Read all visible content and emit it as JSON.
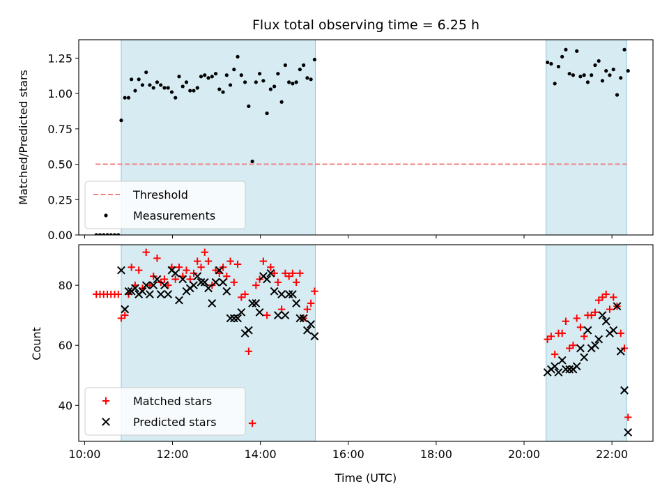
{
  "chart_data": [
    {
      "type": "scatter",
      "title": "Flux total observing time = 6.25 h",
      "xlabel": "",
      "ylabel": "Matched/Predicted stars",
      "xlim": [
        "09:52",
        "22:56"
      ],
      "ylim": [
        0,
        1.38
      ],
      "yticks": [
        0.0,
        0.25,
        0.5,
        0.75,
        1.0,
        1.25
      ],
      "ytick_labels": [
        "0.00",
        "0.25",
        "0.50",
        "0.75",
        "1.00",
        "1.25"
      ],
      "observing_windows": [
        [
          "10:50",
          "15:15"
        ],
        [
          "20:30",
          "22:20"
        ]
      ],
      "threshold": {
        "name": "Threshold",
        "value": 0.5,
        "x_range": [
          "10:15",
          "22:20"
        ],
        "color": "#f08080",
        "style": "dashed"
      },
      "series": [
        {
          "name": "Measurements",
          "marker": "dot",
          "color": "#000000",
          "points": [
            [
              "10:16",
              0.0
            ],
            [
              "10:21",
              0.0
            ],
            [
              "10:26",
              0.0
            ],
            [
              "10:31",
              0.0
            ],
            [
              "10:36",
              0.0
            ],
            [
              "10:41",
              0.0
            ],
            [
              "10:46",
              0.0
            ],
            [
              "10:50",
              0.81
            ],
            [
              "10:55",
              0.97
            ],
            [
              "11:00",
              0.97
            ],
            [
              "11:04",
              1.1
            ],
            [
              "11:09",
              1.02
            ],
            [
              "11:14",
              1.1
            ],
            [
              "11:19",
              1.06
            ],
            [
              "11:24",
              1.15
            ],
            [
              "11:29",
              1.06
            ],
            [
              "11:34",
              1.04
            ],
            [
              "11:39",
              1.08
            ],
            [
              "11:44",
              1.06
            ],
            [
              "11:49",
              1.04
            ],
            [
              "11:54",
              1.04
            ],
            [
              "11:59",
              1.01
            ],
            [
              "12:04",
              0.97
            ],
            [
              "12:09",
              1.12
            ],
            [
              "12:14",
              1.05
            ],
            [
              "12:19",
              1.08
            ],
            [
              "12:24",
              1.02
            ],
            [
              "12:29",
              1.02
            ],
            [
              "12:34",
              1.04
            ],
            [
              "12:39",
              1.12
            ],
            [
              "12:44",
              1.13
            ],
            [
              "12:49",
              1.11
            ],
            [
              "12:54",
              1.12
            ],
            [
              "12:59",
              1.14
            ],
            [
              "13:04",
              1.03
            ],
            [
              "13:09",
              1.01
            ],
            [
              "13:14",
              1.13
            ],
            [
              "13:19",
              1.06
            ],
            [
              "13:24",
              1.17
            ],
            [
              "13:29",
              1.26
            ],
            [
              "13:34",
              1.13
            ],
            [
              "13:39",
              1.08
            ],
            [
              "13:44",
              0.91
            ],
            [
              "13:49",
              0.52
            ],
            [
              "13:54",
              1.08
            ],
            [
              "13:59",
              1.14
            ],
            [
              "14:04",
              1.09
            ],
            [
              "14:09",
              0.86
            ],
            [
              "14:14",
              1.03
            ],
            [
              "14:19",
              1.05
            ],
            [
              "14:24",
              1.14
            ],
            [
              "14:29",
              0.94
            ],
            [
              "14:34",
              1.2
            ],
            [
              "14:39",
              1.08
            ],
            [
              "14:44",
              1.07
            ],
            [
              "14:49",
              1.08
            ],
            [
              "14:54",
              1.17
            ],
            [
              "14:59",
              1.2
            ],
            [
              "15:04",
              1.11
            ],
            [
              "15:09",
              1.1
            ],
            [
              "15:14",
              1.24
            ],
            [
              "20:32",
              1.22
            ],
            [
              "20:37",
              1.21
            ],
            [
              "20:42",
              1.07
            ],
            [
              "20:47",
              1.19
            ],
            [
              "20:52",
              1.26
            ],
            [
              "20:57",
              1.31
            ],
            [
              "21:02",
              1.14
            ],
            [
              "21:07",
              1.13
            ],
            [
              "21:12",
              1.3
            ],
            [
              "21:17",
              1.12
            ],
            [
              "21:22",
              1.13
            ],
            [
              "21:27",
              1.08
            ],
            [
              "21:32",
              1.13
            ],
            [
              "21:37",
              1.2
            ],
            [
              "21:42",
              1.23
            ],
            [
              "21:47",
              1.09
            ],
            [
              "21:52",
              1.16
            ],
            [
              "21:57",
              1.13
            ],
            [
              "22:02",
              1.17
            ],
            [
              "22:07",
              0.99
            ],
            [
              "22:12",
              1.11
            ],
            [
              "22:17",
              1.31
            ],
            [
              "22:22",
              1.16
            ]
          ]
        }
      ],
      "legend": {
        "placement": "lower-left"
      }
    },
    {
      "type": "scatter",
      "title": "",
      "xlabel": "Time (UTC)",
      "ylabel": "Count",
      "xlim": [
        "09:52",
        "22:56"
      ],
      "ylim": [
        28,
        93.5
      ],
      "yticks": [
        40,
        60,
        80
      ],
      "ytick_labels": [
        "40",
        "60",
        "80"
      ],
      "xticks": [
        "10:00",
        "12:00",
        "14:00",
        "16:00",
        "18:00",
        "20:00",
        "22:00"
      ],
      "observing_windows": [
        [
          "10:50",
          "15:15"
        ],
        [
          "20:30",
          "22:20"
        ]
      ],
      "series": [
        {
          "name": "Matched stars",
          "marker": "plus",
          "color": "#ff0000",
          "points": [
            [
              "10:16",
              77
            ],
            [
              "10:21",
              77
            ],
            [
              "10:26",
              77
            ],
            [
              "10:31",
              77
            ],
            [
              "10:36",
              77
            ],
            [
              "10:41",
              77
            ],
            [
              "10:46",
              77
            ],
            [
              "10:50",
              69
            ],
            [
              "10:55",
              70
            ],
            [
              "11:00",
              77
            ],
            [
              "11:04",
              86
            ],
            [
              "11:09",
              80
            ],
            [
              "11:14",
              85
            ],
            [
              "11:19",
              79
            ],
            [
              "11:24",
              91
            ],
            [
              "11:29",
              80
            ],
            [
              "11:34",
              83
            ],
            [
              "11:39",
              89
            ],
            [
              "11:44",
              81
            ],
            [
              "11:49",
              82
            ],
            [
              "11:54",
              80
            ],
            [
              "11:59",
              86
            ],
            [
              "12:04",
              82
            ],
            [
              "12:09",
              86
            ],
            [
              "12:14",
              83
            ],
            [
              "12:19",
              85
            ],
            [
              "12:24",
              82
            ],
            [
              "12:29",
              84
            ],
            [
              "12:34",
              88
            ],
            [
              "12:39",
              86
            ],
            [
              "12:44",
              91
            ],
            [
              "12:49",
              88
            ],
            [
              "12:54",
              80
            ],
            [
              "12:59",
              85
            ],
            [
              "13:04",
              84
            ],
            [
              "13:09",
              86
            ],
            [
              "13:14",
              83
            ],
            [
              "13:19",
              88
            ],
            [
              "13:24",
              81
            ],
            [
              "13:29",
              87
            ],
            [
              "13:34",
              76
            ],
            [
              "13:39",
              77
            ],
            [
              "13:44",
              58
            ],
            [
              "13:49",
              34
            ],
            [
              "13:54",
              80
            ],
            [
              "13:59",
              82
            ],
            [
              "14:04",
              88
            ],
            [
              "14:09",
              70
            ],
            [
              "14:14",
              86
            ],
            [
              "14:19",
              84
            ],
            [
              "14:24",
              81
            ],
            [
              "14:29",
              72
            ],
            [
              "14:34",
              84
            ],
            [
              "14:39",
              83
            ],
            [
              "14:44",
              84
            ],
            [
              "14:49",
              81
            ],
            [
              "14:54",
              84
            ],
            [
              "14:59",
              69
            ],
            [
              "15:04",
              72
            ],
            [
              "15:09",
              74
            ],
            [
              "15:14",
              78
            ],
            [
              "20:32",
              62
            ],
            [
              "20:37",
              63
            ],
            [
              "20:42",
              57
            ],
            [
              "20:47",
              64
            ],
            [
              "20:52",
              64
            ],
            [
              "20:57",
              68
            ],
            [
              "21:02",
              59
            ],
            [
              "21:07",
              60
            ],
            [
              "21:12",
              69
            ],
            [
              "21:17",
              66
            ],
            [
              "21:22",
              63
            ],
            [
              "21:27",
              70
            ],
            [
              "21:32",
              70
            ],
            [
              "21:37",
              71
            ],
            [
              "21:42",
              75
            ],
            [
              "21:47",
              76
            ],
            [
              "21:52",
              77
            ],
            [
              "21:57",
              72
            ],
            [
              "22:02",
              76
            ],
            [
              "22:07",
              73
            ],
            [
              "22:12",
              64
            ],
            [
              "22:17",
              59
            ],
            [
              "22:22",
              36
            ]
          ]
        },
        {
          "name": "Predicted stars",
          "marker": "cross",
          "color": "#000000",
          "points": [
            [
              "10:50",
              85
            ],
            [
              "10:55",
              72
            ],
            [
              "11:00",
              78
            ],
            [
              "11:04",
              78
            ],
            [
              "11:09",
              79
            ],
            [
              "11:14",
              77
            ],
            [
              "11:19",
              78
            ],
            [
              "11:24",
              80
            ],
            [
              "11:29",
              77
            ],
            [
              "11:34",
              80
            ],
            [
              "11:39",
              82
            ],
            [
              "11:44",
              77
            ],
            [
              "11:49",
              80
            ],
            [
              "11:54",
              77
            ],
            [
              "11:59",
              85
            ],
            [
              "12:04",
              84
            ],
            [
              "12:09",
              75
            ],
            [
              "12:14",
              82
            ],
            [
              "12:19",
              78
            ],
            [
              "12:24",
              79
            ],
            [
              "12:29",
              80
            ],
            [
              "12:34",
              83
            ],
            [
              "12:39",
              81
            ],
            [
              "12:44",
              81
            ],
            [
              "12:49",
              79
            ],
            [
              "12:54",
              74
            ],
            [
              "12:59",
              81
            ],
            [
              "13:04",
              85
            ],
            [
              "13:09",
              81
            ],
            [
              "13:14",
              78
            ],
            [
              "13:19",
              69
            ],
            [
              "13:24",
              69
            ],
            [
              "13:29",
              69
            ],
            [
              "13:34",
              71
            ],
            [
              "13:39",
              64
            ],
            [
              "13:44",
              65
            ],
            [
              "13:49",
              74
            ],
            [
              "13:54",
              74
            ],
            [
              "13:59",
              71
            ],
            [
              "14:04",
              83
            ],
            [
              "14:09",
              82
            ],
            [
              "14:14",
              84
            ],
            [
              "14:19",
              78
            ],
            [
              "14:24",
              70
            ],
            [
              "14:29",
              77
            ],
            [
              "14:34",
              70
            ],
            [
              "14:39",
              77
            ],
            [
              "14:44",
              77
            ],
            [
              "14:49",
              74
            ],
            [
              "14:54",
              69
            ],
            [
              "14:59",
              69
            ],
            [
              "15:04",
              65
            ],
            [
              "15:09",
              67
            ],
            [
              "15:14",
              63
            ],
            [
              "20:32",
              51
            ],
            [
              "20:37",
              52
            ],
            [
              "20:42",
              53
            ],
            [
              "20:47",
              51
            ],
            [
              "20:52",
              55
            ],
            [
              "20:57",
              52
            ],
            [
              "21:02",
              52
            ],
            [
              "21:07",
              52
            ],
            [
              "21:12",
              53
            ],
            [
              "21:17",
              59
            ],
            [
              "21:22",
              56
            ],
            [
              "21:27",
              65
            ],
            [
              "21:32",
              59
            ],
            [
              "21:37",
              60
            ],
            [
              "21:42",
              62
            ],
            [
              "21:47",
              70
            ],
            [
              "21:52",
              68
            ],
            [
              "21:57",
              64
            ],
            [
              "22:02",
              65
            ],
            [
              "22:07",
              73
            ],
            [
              "22:12",
              58
            ],
            [
              "22:17",
              45
            ],
            [
              "22:22",
              31
            ]
          ]
        }
      ],
      "legend": {
        "placement": "lower-left"
      }
    }
  ]
}
